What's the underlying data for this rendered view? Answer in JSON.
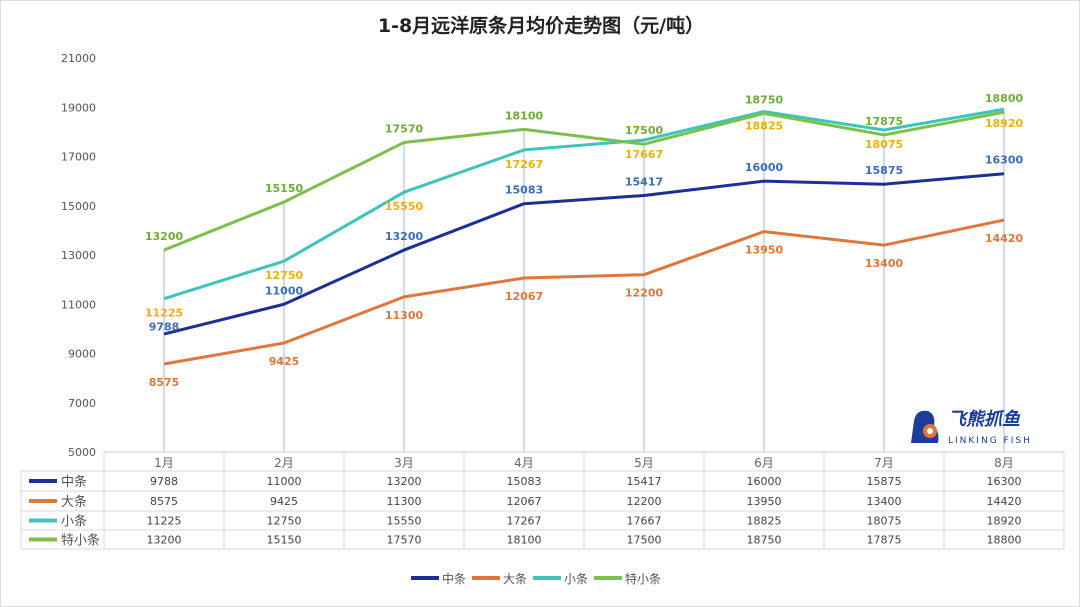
{
  "chart_data": {
    "type": "line",
    "title": "1-8月远洋原条月均价走势图（元/吨）",
    "categories": [
      "1月",
      "2月",
      "3月",
      "4月",
      "5月",
      "6月",
      "7月",
      "8月"
    ],
    "ylim": [
      5000,
      21000
    ],
    "yticks": [
      5000,
      7000,
      9000,
      11000,
      13000,
      15000,
      17000,
      19000,
      21000
    ],
    "grid": false,
    "legend": "bottom",
    "data_table": true,
    "series": [
      {
        "name": "中条",
        "color": "#1b2f96",
        "label_color": "#3a6cc0",
        "values": [
          9788,
          11000,
          13200,
          15083,
          15417,
          16000,
          15875,
          16300
        ]
      },
      {
        "name": "大条",
        "color": "#e0763a",
        "label_color": "#e0763a",
        "values": [
          8575,
          9425,
          11300,
          12067,
          12200,
          13950,
          13400,
          14420
        ]
      },
      {
        "name": "小条",
        "color": "#3cc4bd",
        "label_color": "#eeb300",
        "values": [
          11225,
          12750,
          15550,
          17267,
          17667,
          18825,
          18075,
          18920
        ]
      },
      {
        "name": "特小条",
        "color": "#7cc04a",
        "label_color": "#6fae34",
        "values": [
          13200,
          15150,
          17570,
          18100,
          17500,
          18750,
          17875,
          18800
        ]
      }
    ]
  },
  "watermark": {
    "text_cn": "飞熊抓鱼",
    "text_en": "LINKING FISH"
  }
}
